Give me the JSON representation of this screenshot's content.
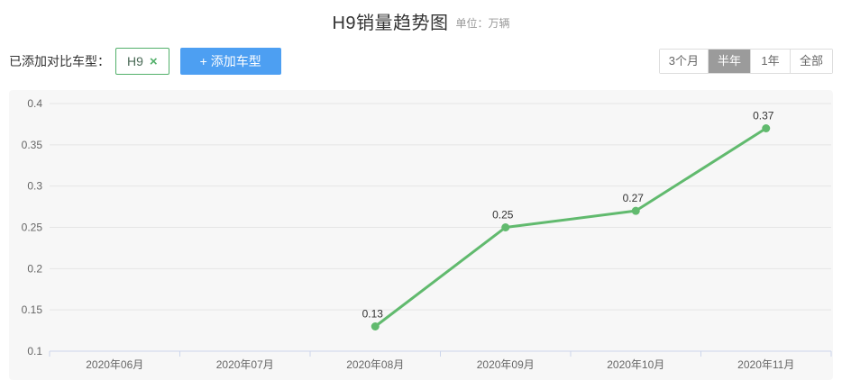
{
  "header": {
    "title": "H9销量趋势图",
    "unit": "单位：万辆"
  },
  "toolbar": {
    "compare_label": "已添加对比车型：",
    "model_tag": {
      "label": "H9",
      "remove_icon": "×"
    },
    "add_button_label": "+ 添加车型",
    "range_buttons": [
      {
        "label": "3个月",
        "active": false
      },
      {
        "label": "半年",
        "active": true
      },
      {
        "label": "1年",
        "active": false
      },
      {
        "label": "全部",
        "active": false
      }
    ]
  },
  "chart_data": {
    "type": "line",
    "title": "H9销量趋势图",
    "unit": "万辆",
    "categories": [
      "2020年06月",
      "2020年07月",
      "2020年08月",
      "2020年09月",
      "2020年10月",
      "2020年11月"
    ],
    "series": [
      {
        "name": "H9",
        "values": [
          null,
          null,
          0.13,
          0.25,
          0.27,
          0.37
        ],
        "color": "#61ba6e"
      }
    ],
    "ylim": [
      0.1,
      0.4
    ],
    "ytick_step": 0.05,
    "ytick_labels": [
      "0.1",
      "0.15",
      "0.2",
      "0.25",
      "0.3",
      "0.35",
      "0.4"
    ],
    "data_labels": [
      "0.13",
      "0.25",
      "0.27",
      "0.37"
    ],
    "grid": true,
    "legend": "none",
    "colors": {
      "gridline": "#e6e6e6",
      "axis_line": "#ccd6eb",
      "tick": "#ccd6eb",
      "axis_label": "#666666",
      "data_label": "#333333",
      "plot_background": "#f7f7f7"
    }
  }
}
